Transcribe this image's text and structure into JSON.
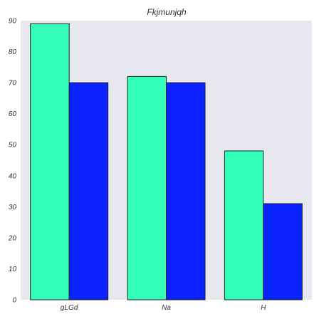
{
  "chart_data": {
    "type": "bar",
    "title": "Fkjmunjqh",
    "xlabel": "",
    "ylabel": "",
    "categories": [
      "gLGd",
      "Na",
      "H"
    ],
    "series": [
      {
        "values": [
          89,
          72,
          48
        ],
        "color": "#33ffb8"
      },
      {
        "values": [
          70,
          70,
          31
        ],
        "color": "#0a22ff"
      }
    ],
    "ylim": [
      0,
      90
    ],
    "yticks": [
      0,
      10,
      20,
      30,
      40,
      50,
      60,
      70,
      80,
      90
    ],
    "plot_background": "#e8e8f0",
    "grid": false,
    "legend": "none"
  }
}
